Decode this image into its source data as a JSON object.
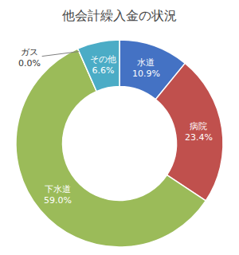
{
  "chart_data": {
    "type": "donut",
    "title": "他会計繰入金の状況",
    "categories": [
      "水道",
      "病院",
      "下水道",
      "ガス",
      "その他"
    ],
    "values": [
      10.9,
      23.4,
      59.0,
      0.0,
      6.6
    ],
    "value_labels": [
      "10.9%",
      "23.4%",
      "59.0%",
      "0.0%",
      "6.6%"
    ],
    "colors": [
      "#4472c4",
      "#c0504d",
      "#9bbb59",
      "#808080",
      "#4bacc6"
    ],
    "data_labels": true
  }
}
